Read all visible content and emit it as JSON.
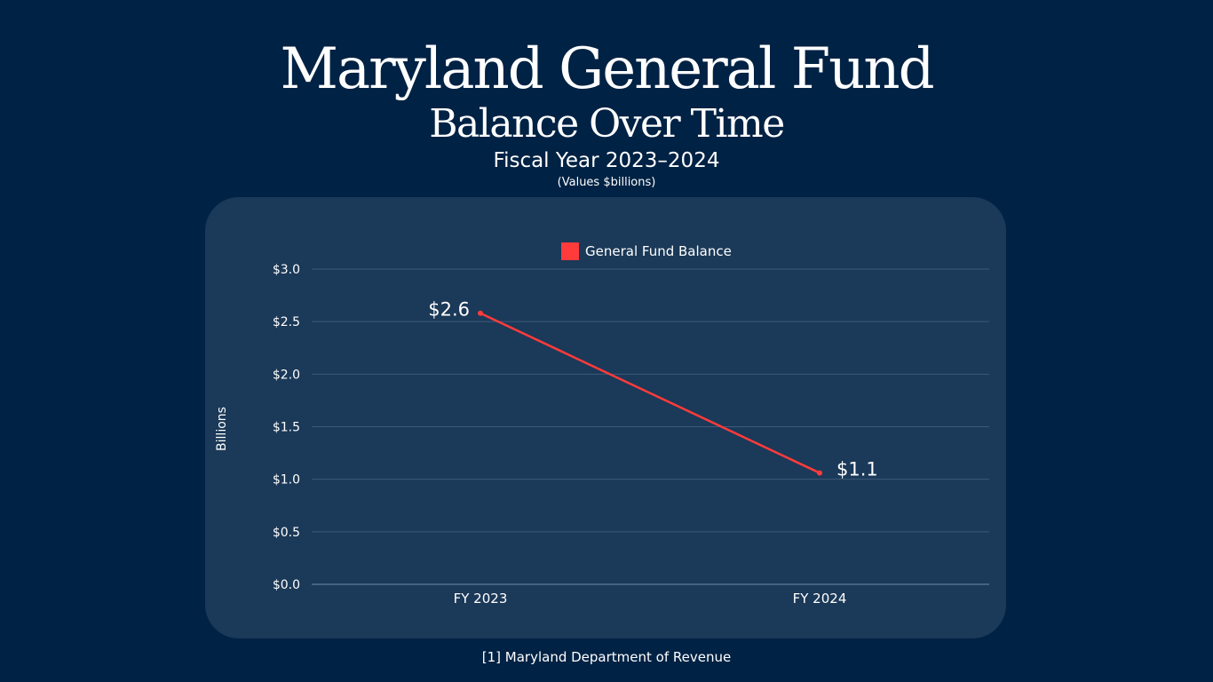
{
  "header": {
    "title": "Maryland General Fund",
    "subtitle": "Balance Over Time",
    "fiscal_range": "Fiscal Year 2023–2024",
    "units_note": "(Values $billions)"
  },
  "footer": {
    "source": "[1] Maryland Department of Revenue"
  },
  "colors": {
    "background": "#002244",
    "panel": "#1b3958",
    "series": "#ff3b3b",
    "grid": "#3d5a78",
    "text": "#ffffff"
  },
  "chart_data": {
    "type": "line",
    "title": "Maryland General Fund",
    "categories": [
      "FY 2023",
      "FY 2024"
    ],
    "series": [
      {
        "name": "General Fund Balance",
        "values": [
          2.58,
          1.06
        ],
        "labels": [
          "$2.6",
          "$1.1"
        ]
      }
    ],
    "ylabel": "Billions",
    "xlabel": "",
    "ylim": [
      0,
      3
    ],
    "yticks": [
      0,
      0.5,
      1,
      1.5,
      2,
      2.5,
      3
    ],
    "ytick_labels": [
      "$0.0",
      "$0.5",
      "$1.0",
      "$1.5",
      "$2.0",
      "$2.5",
      "$3.0"
    ],
    "grid": true,
    "legend": "top-center"
  }
}
